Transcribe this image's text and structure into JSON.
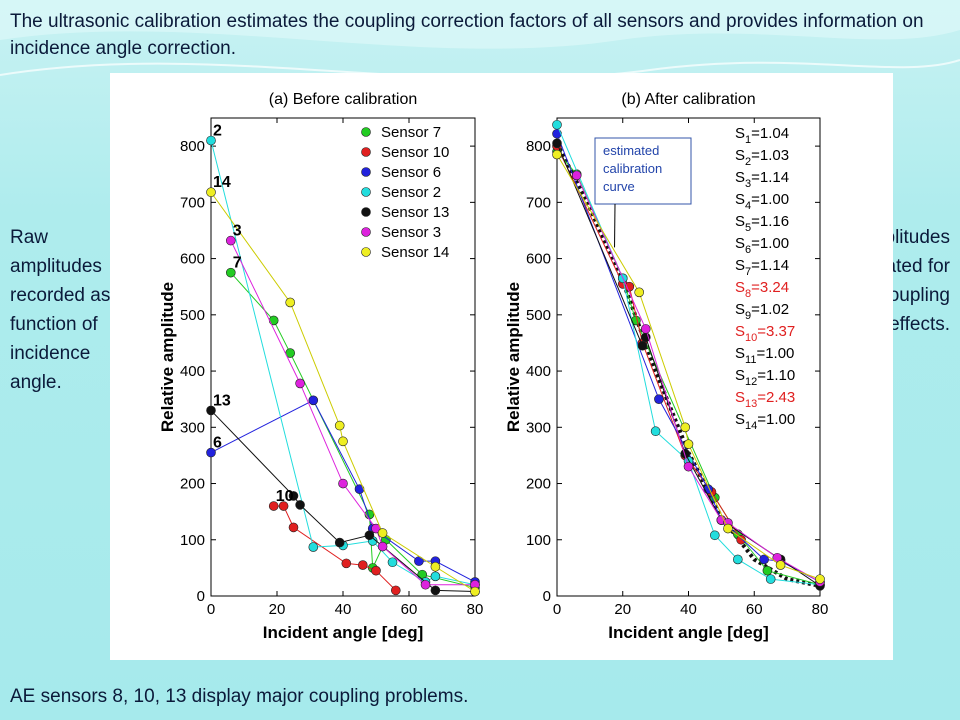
{
  "heading": "The ultrasonic calibration estimates the coupling correction factors of all sensors and provides information on incidence angle correction.",
  "left_note": "Raw amplitudes recorded as a function of incidence angle.",
  "right_note": "Amplitudes calibrated for the coupling effects.",
  "footer": "AE sensors 8, 10, 13 display major coupling problems.",
  "colors": {
    "accent_red": "#e02020"
  },
  "chart_data": [
    {
      "type": "scatter",
      "title": "(a) Before calibration",
      "xlabel": "Incident angle [deg]",
      "ylabel": "Relative amplitude",
      "xlim": [
        0,
        80
      ],
      "ylim": [
        0,
        850
      ],
      "xticks": [
        0,
        20,
        40,
        60,
        80
      ],
      "yticks": [
        0,
        100,
        200,
        300,
        400,
        500,
        600,
        700,
        800
      ],
      "legend": "top-right",
      "grid": false,
      "series": [
        {
          "name": "Sensor 7",
          "color": "#22cc22",
          "x": [
            6,
            19,
            24,
            48,
            49,
            53,
            64,
            80
          ],
          "y": [
            575,
            490,
            432,
            145,
            50,
            100,
            38,
            15
          ]
        },
        {
          "name": "Sensor 10",
          "color": "#e02020",
          "x": [
            19,
            22,
            25,
            41,
            46,
            50,
            56
          ],
          "y": [
            160,
            160,
            122,
            58,
            55,
            45,
            10
          ]
        },
        {
          "name": "Sensor 6",
          "color": "#2222dd",
          "x": [
            0,
            31,
            45,
            49,
            63,
            68,
            80
          ],
          "y": [
            255,
            348,
            190,
            120,
            62,
            62,
            25
          ]
        },
        {
          "name": "Sensor 2",
          "color": "#22dddd",
          "x": [
            0,
            31,
            40,
            49,
            55,
            65,
            68,
            80
          ],
          "y": [
            810,
            87,
            90,
            98,
            60,
            25,
            35,
            20
          ]
        },
        {
          "name": "Sensor 13",
          "color": "#111111",
          "x": [
            0,
            25,
            27,
            39,
            48,
            68,
            80
          ],
          "y": [
            330,
            178,
            162,
            95,
            108,
            10,
            8
          ]
        },
        {
          "name": "Sensor 3",
          "color": "#dd22dd",
          "x": [
            6,
            27,
            40,
            50,
            52,
            65,
            80
          ],
          "y": [
            632,
            378,
            200,
            120,
            88,
            20,
            20
          ]
        },
        {
          "name": "Sensor 14",
          "color": "#eeee22",
          "x": [
            0,
            24,
            39,
            40,
            52,
            68,
            80
          ],
          "y": [
            718,
            522,
            303,
            275,
            112,
            52,
            8
          ]
        }
      ],
      "annotations": [
        {
          "text": "2",
          "x": 0,
          "y": 810
        },
        {
          "text": "14",
          "x": 0,
          "y": 718
        },
        {
          "text": "3",
          "x": 6,
          "y": 632
        },
        {
          "text": "7",
          "x": 6,
          "y": 575
        },
        {
          "text": "13",
          "x": 0,
          "y": 330
        },
        {
          "text": "6",
          "x": 0,
          "y": 255
        },
        {
          "text": "10",
          "x": 19,
          "y": 160
        }
      ]
    },
    {
      "type": "scatter",
      "title": "(b) After calibration",
      "xlabel": "Incident angle [deg]",
      "ylabel": "Relative amplitude",
      "xlim": [
        0,
        80
      ],
      "ylim": [
        0,
        850
      ],
      "xticks": [
        0,
        20,
        40,
        60,
        80
      ],
      "yticks": [
        0,
        100,
        200,
        300,
        400,
        500,
        600,
        700,
        800
      ],
      "curve_label": "estimated calibration curve",
      "curve": {
        "x": [
          0,
          10,
          20,
          30,
          40,
          50,
          60,
          70,
          80
        ],
        "y": [
          805,
          690,
          560,
          400,
          255,
          140,
          65,
          30,
          18
        ]
      },
      "series": [
        {
          "name": "Sensor 7",
          "color": "#22cc22",
          "x": [
            0,
            6,
            20,
            24,
            48,
            55,
            64,
            80
          ],
          "y": [
            790,
            750,
            565,
            490,
            175,
            110,
            45,
            20
          ]
        },
        {
          "name": "Sensor 10",
          "color": "#e02020",
          "x": [
            0,
            20,
            22,
            26,
            39,
            47,
            56
          ],
          "y": [
            800,
            555,
            550,
            450,
            250,
            185,
            100
          ]
        },
        {
          "name": "Sensor 6",
          "color": "#2222dd",
          "x": [
            0,
            31,
            46,
            50,
            63,
            68,
            80
          ],
          "y": [
            822,
            350,
            190,
            135,
            65,
            62,
            25
          ]
        },
        {
          "name": "Sensor 2",
          "color": "#22dddd",
          "x": [
            0,
            20,
            30,
            40,
            48,
            55,
            65,
            80
          ],
          "y": [
            838,
            565,
            293,
            240,
            108,
            65,
            30,
            20
          ]
        },
        {
          "name": "Sensor 13",
          "color": "#111111",
          "x": [
            0,
            26,
            27,
            39,
            50,
            68,
            80
          ],
          "y": [
            805,
            445,
            460,
            253,
            135,
            65,
            18
          ]
        },
        {
          "name": "Sensor 3",
          "color": "#dd22dd",
          "x": [
            6,
            27,
            40,
            50,
            52,
            67,
            80
          ],
          "y": [
            748,
            475,
            230,
            135,
            130,
            68,
            25
          ]
        },
        {
          "name": "Sensor 14",
          "color": "#eeee22",
          "x": [
            0,
            25,
            39,
            40,
            52,
            68,
            80
          ],
          "y": [
            785,
            540,
            300,
            270,
            120,
            55,
            30
          ]
        }
      ],
      "factors": [
        {
          "sub": "1",
          "value": "=1.04",
          "highlight": false
        },
        {
          "sub": "2",
          "value": "=1.03",
          "highlight": false
        },
        {
          "sub": "3",
          "value": "=1.14",
          "highlight": false
        },
        {
          "sub": "4",
          "value": "=1.00",
          "highlight": false
        },
        {
          "sub": "5",
          "value": "=1.16",
          "highlight": false
        },
        {
          "sub": "6",
          "value": "=1.00",
          "highlight": false
        },
        {
          "sub": "7",
          "value": "=1.14",
          "highlight": false
        },
        {
          "sub": "8",
          "value": "=3.24",
          "highlight": true
        },
        {
          "sub": "9",
          "value": "=1.02",
          "highlight": false
        },
        {
          "sub": "10",
          "value": "=3.37",
          "highlight": true
        },
        {
          "sub": "11",
          "value": "=1.00",
          "highlight": false
        },
        {
          "sub": "12",
          "value": "=1.10",
          "highlight": false
        },
        {
          "sub": "13",
          "value": "=2.43",
          "highlight": true
        },
        {
          "sub": "14",
          "value": "=1.00",
          "highlight": false
        }
      ]
    }
  ]
}
